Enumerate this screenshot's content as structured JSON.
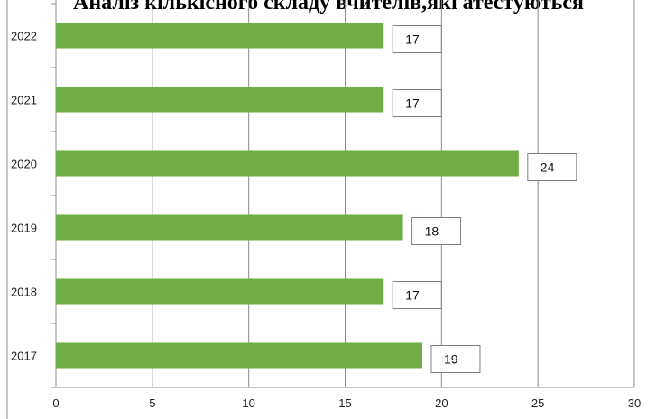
{
  "chart_data": {
    "type": "bar",
    "orientation": "horizontal",
    "title": "Аналіз кількісного складу вчителів,які атестуються",
    "categories": [
      "2022",
      "2021",
      "2020",
      "2019",
      "2018",
      "2017"
    ],
    "series": [
      {
        "values": [
          17,
          17,
          24,
          18,
          17,
          19
        ]
      }
    ],
    "xlim": [
      0,
      30
    ],
    "xticks": [
      0,
      5,
      10,
      15,
      20,
      25,
      30
    ],
    "grid": true,
    "legend": "none",
    "bar_color": "#70AD47",
    "data_labels": true
  }
}
